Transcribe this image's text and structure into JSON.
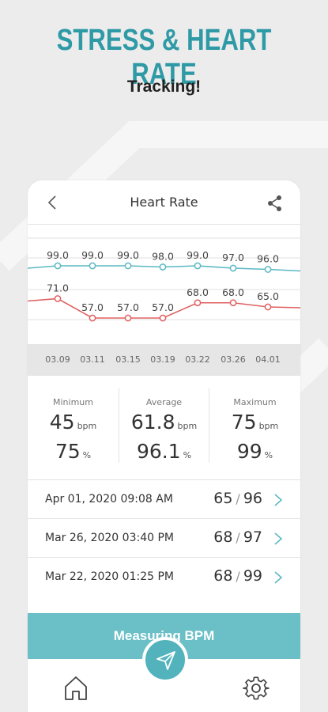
{
  "promo": {
    "headline": "STRESS & HEART RATE",
    "subline": "Tracking!"
  },
  "header": {
    "title": "Heart Rate",
    "back_icon": "chevron-left-icon",
    "share_icon": "share-icon"
  },
  "chart_data": {
    "type": "line",
    "categories": [
      "03.09",
      "03.11",
      "03.15",
      "03.19",
      "03.22",
      "03.26",
      "04.01"
    ],
    "series": [
      {
        "values": [
          99.0,
          99.0,
          99.0,
          98.0,
          99.0,
          97.0,
          96.0
        ],
        "color": "#5bb8c4"
      },
      {
        "values": [
          71.0,
          57.0,
          57.0,
          57.0,
          68.0,
          68.0,
          65.0
        ],
        "color": "#e06060"
      }
    ],
    "value_labels": [
      [
        "99.0",
        "99.0",
        "99.0",
        "98.0",
        "99.0",
        "97.0",
        "96.0"
      ],
      [
        "71.0",
        "57.0",
        "57.0",
        "57.0",
        "68.0",
        "68.0",
        "65.0"
      ]
    ],
    "grid": true
  },
  "stats": {
    "minimum": {
      "label": "Minimum",
      "bpm": "45",
      "spo2": "75"
    },
    "average": {
      "label": "Average",
      "bpm": "61.8",
      "spo2": "96.1"
    },
    "maximum": {
      "label": "Maximum",
      "bpm": "75",
      "spo2": "99"
    },
    "bpm_unit": "bpm",
    "spo2_unit": "%"
  },
  "records": [
    {
      "date": "Apr 01, 2020 09:08 AM",
      "bpm": "65",
      "spo2": "96"
    },
    {
      "date": "Mar 26, 2020 03:40 PM",
      "bpm": "68",
      "spo2": "97"
    },
    {
      "date": "Mar 22, 2020 01:25 PM",
      "bpm": "68",
      "spo2": "99"
    }
  ],
  "record_separator": "/",
  "measure_label": "Measuring BPM",
  "tabbar": {
    "home_icon": "home-icon",
    "center_icon": "paper-plane-icon",
    "settings_icon": "gear-icon"
  }
}
